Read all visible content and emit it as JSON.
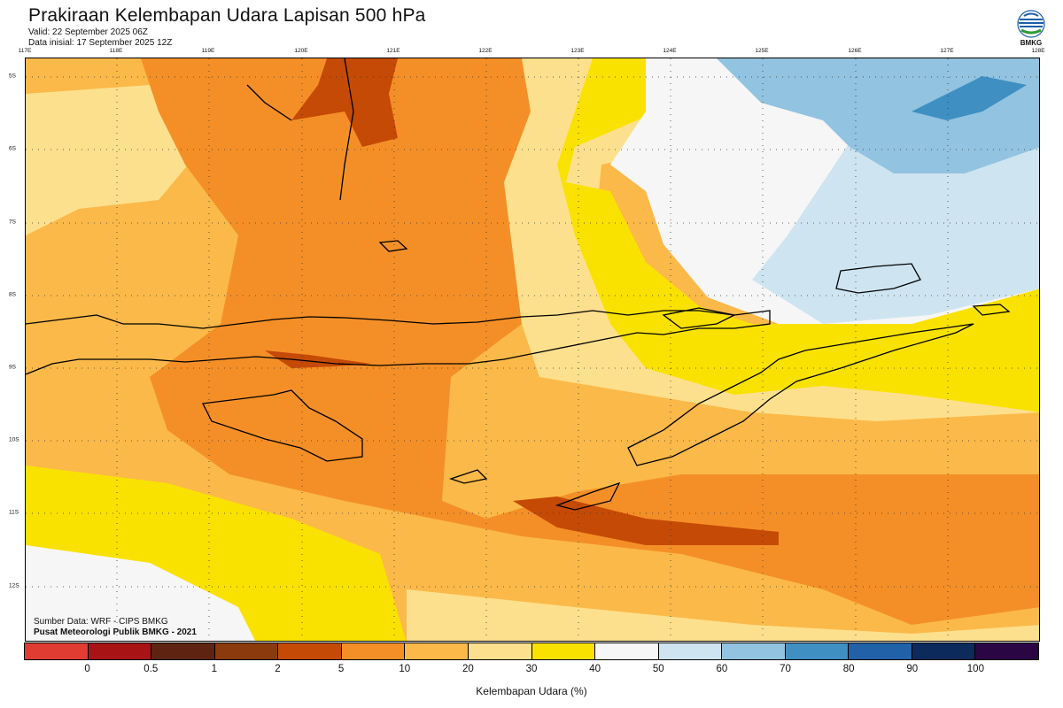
{
  "header": {
    "title": "Prakiraan Kelembapan Udara Lapisan 500 hPa",
    "valid": "Valid: 22 September 2025 06Z",
    "initial": "Data inisial: 17 September 2025 12Z"
  },
  "logo": {
    "text": "BMKG",
    "icon": "bmkg-logo-icon"
  },
  "axes": {
    "lon_labels": [
      "117E",
      "118E",
      "119E",
      "120E",
      "121E",
      "122E",
      "123E",
      "124E",
      "125E",
      "126E",
      "127E",
      "128E"
    ],
    "lat_labels": [
      "5S",
      "6S",
      "7S",
      "8S",
      "9S",
      "10S",
      "11S",
      "12S"
    ]
  },
  "footer": {
    "source": "Sumber Data: WRF - CIPS BMKG",
    "center": "Pusat Meteorologi Publik BMKG - 2021"
  },
  "colorbar": {
    "colors": [
      "#e13c32",
      "#a81416",
      "#5e2411",
      "#8a3a0d",
      "#c54a05",
      "#f48f27",
      "#fbb949",
      "#fde08d",
      "#f9e200",
      "#f6f6f6",
      "#cfe4f1",
      "#92c3e0",
      "#3f8fc2",
      "#2061a8",
      "#0c2a5c",
      "#2b0645"
    ],
    "labels": [
      "0",
      "0.5",
      "1",
      "2",
      "5",
      "10",
      "20",
      "30",
      "40",
      "50",
      "60",
      "70",
      "80",
      "90",
      "100"
    ],
    "title": "Kelembapan Udara (%)"
  }
}
